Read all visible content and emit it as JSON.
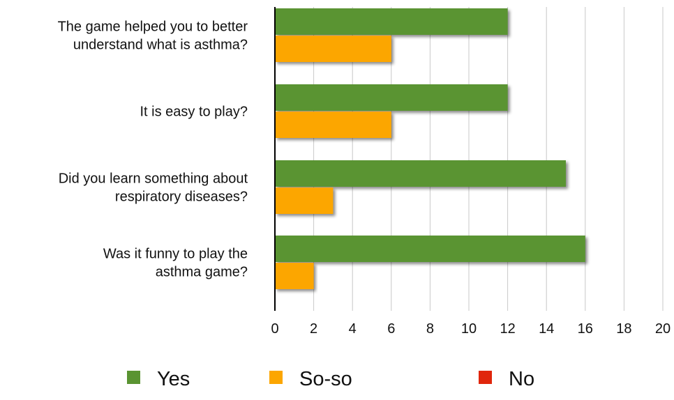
{
  "chart_data": {
    "type": "bar",
    "orientation": "horizontal",
    "categories": [
      [
        "The game helped you to better",
        "understand what is asthma?"
      ],
      [
        "It is easy to play?"
      ],
      [
        "Did you learn something about",
        "respiratory diseases?"
      ],
      [
        "Was it funny to play the",
        "asthma game?"
      ]
    ],
    "series": [
      {
        "name": "Yes",
        "color": "#5a9432",
        "values": [
          12,
          12,
          15,
          16
        ]
      },
      {
        "name": "So-so",
        "color": "#fca600",
        "values": [
          6,
          6,
          3,
          2
        ]
      },
      {
        "name": "No",
        "color": "#e0260c",
        "values": [
          0,
          0,
          0,
          0
        ]
      }
    ],
    "xlim": [
      0,
      20
    ],
    "xticks": [
      "0",
      "2",
      "4",
      "6",
      "8",
      "10",
      "12",
      "14",
      "16",
      "18",
      "20"
    ],
    "grid": true,
    "legend": "bottom"
  }
}
